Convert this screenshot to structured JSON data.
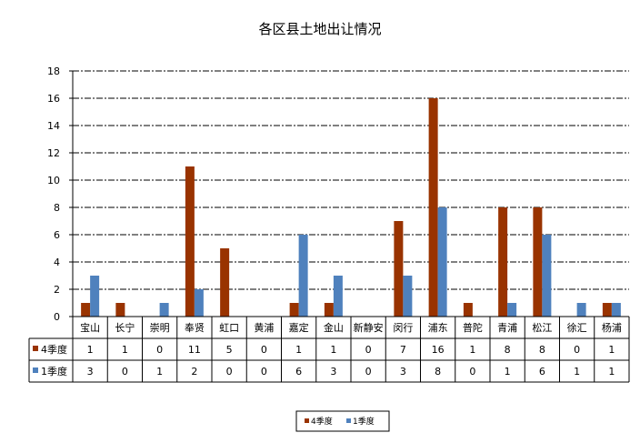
{
  "chart_data": {
    "type": "bar",
    "title": "各区县土地出让情况",
    "categories": [
      "宝山",
      "长宁",
      "崇明",
      "奉贤",
      "虹口",
      "黄浦",
      "嘉定",
      "金山",
      "新静安",
      "闵行",
      "浦东",
      "普陀",
      "青浦",
      "松江",
      "徐汇",
      "杨浦"
    ],
    "series": [
      {
        "name": "4季度",
        "color": "#993300",
        "values": [
          1,
          1,
          0,
          11,
          5,
          0,
          1,
          1,
          0,
          7,
          16,
          1,
          8,
          8,
          0,
          1
        ]
      },
      {
        "name": "1季度",
        "color": "#4F81BD",
        "values": [
          3,
          0,
          1,
          2,
          0,
          0,
          6,
          3,
          0,
          3,
          8,
          0,
          1,
          6,
          1,
          1
        ]
      }
    ],
    "yticks": [
      0,
      2,
      4,
      6,
      8,
      10,
      12,
      14,
      16,
      18
    ],
    "ylim": [
      0,
      18
    ],
    "grid": true,
    "data_table": true,
    "legend_position": "bottom"
  }
}
